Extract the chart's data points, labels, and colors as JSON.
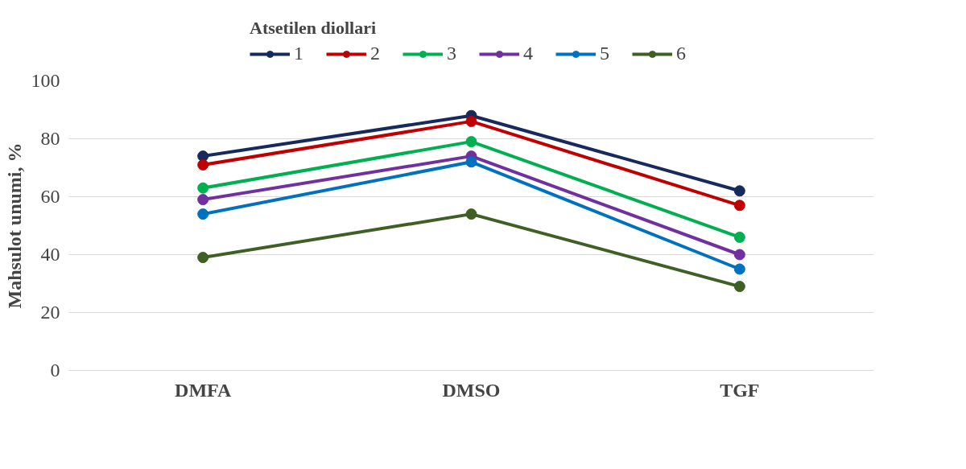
{
  "chart_data": {
    "type": "line",
    "legend_title": "Atsetilen diollari",
    "ylabel": "Mahsulot unumi, %",
    "categories": [
      "DMFA",
      "DMSO",
      "TGF"
    ],
    "series": [
      {
        "name": "1",
        "color": "#172a5e",
        "values": [
          74,
          88,
          62
        ]
      },
      {
        "name": "2",
        "color": "#c00000",
        "values": [
          71,
          86,
          57
        ]
      },
      {
        "name": "3",
        "color": "#00b050",
        "values": [
          63,
          79,
          46
        ]
      },
      {
        "name": "4",
        "color": "#7030a0",
        "values": [
          59,
          74,
          40
        ]
      },
      {
        "name": "5",
        "color": "#0070c0",
        "values": [
          54,
          72,
          35
        ]
      },
      {
        "name": "6",
        "color": "#3f5f24",
        "values": [
          39,
          54,
          29
        ]
      }
    ],
    "ylim": [
      0,
      100
    ],
    "yticks": [
      0,
      20,
      40,
      60,
      80,
      100
    ],
    "grid": "y",
    "legend": "top",
    "marker": "circle",
    "line_style": "solid"
  }
}
